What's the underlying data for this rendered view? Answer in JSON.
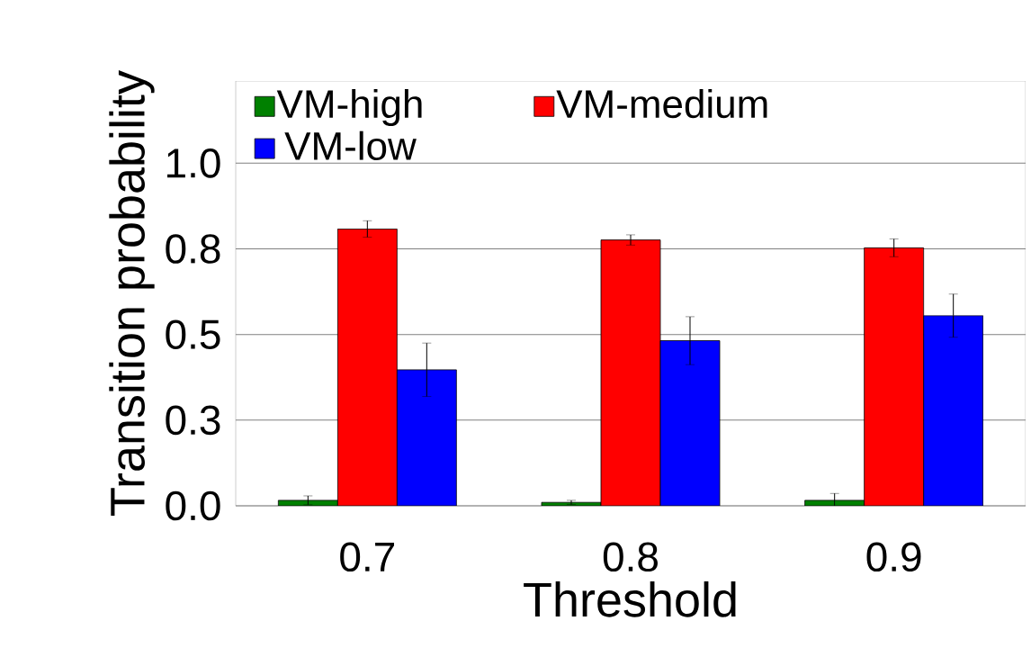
{
  "chart_data": {
    "type": "bar",
    "xlabel": "Threshold",
    "ylabel": "Transition probability",
    "categories": [
      "0.7",
      "0.8",
      "0.9"
    ],
    "series": [
      {
        "name": "VM-high",
        "color": "#008000",
        "values": [
          0.016,
          0.01,
          0.016
        ],
        "errors": [
          0.013,
          0.006,
          0.02
        ]
      },
      {
        "name": "VM-medium",
        "color": "#ff0000",
        "values": [
          0.808,
          0.776,
          0.753
        ],
        "errors": [
          0.024,
          0.015,
          0.026
        ]
      },
      {
        "name": "VM-low",
        "color": "#0000ff",
        "values": [
          0.397,
          0.482,
          0.555
        ],
        "errors": [
          0.078,
          0.07,
          0.063
        ]
      }
    ],
    "ylim": [
      0,
      1.24
    ],
    "yticks": [
      {
        "value": 0,
        "label": "0.0"
      },
      {
        "value": 0.25,
        "label": "0.3"
      },
      {
        "value": 0.5,
        "label": "0.5"
      },
      {
        "value": 0.75,
        "label": "0.8"
      },
      {
        "value": 1.0,
        "label": "1.0"
      }
    ],
    "grid": "y",
    "legend": "top"
  }
}
